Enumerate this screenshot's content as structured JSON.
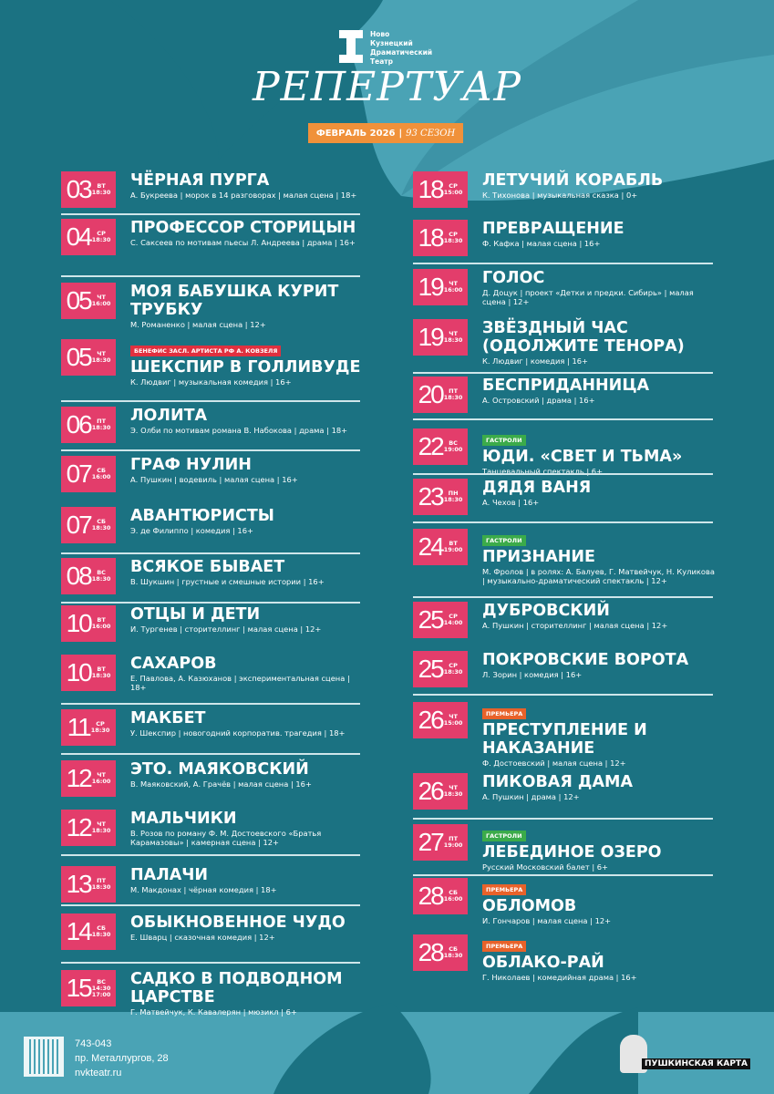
{
  "header": {
    "logo_lines": [
      "Ново",
      "Кузнецкий",
      "Драматический",
      "Театр"
    ],
    "title": "РЕПЕРТУАР",
    "month": "ФЕВРАЛЬ 2026",
    "season": "93 СЕЗОН"
  },
  "colors": {
    "bg_dark": "#1b7282",
    "bg_light": "#4aa3b5",
    "date": "#e33d6b",
    "month": "#f0913a",
    "tour": "#3bab4a",
    "premiere": "#e8622a",
    "benefit": "#e0303f"
  },
  "left": [
    {
      "day": "03",
      "wd": "ВТ",
      "time": "18:30",
      "title": "Чёрная пурга",
      "desc": "А. Букреева | морок в 14 разговорах | малая сцена | 18+"
    },
    {
      "day": "04",
      "wd": "СР",
      "time": "18:30",
      "title": "Профессор сторицын",
      "desc": "С. Саксеев по мотивам пьесы Л. Андреева | драма | 16+"
    },
    {
      "day": "05",
      "wd": "ЧТ",
      "time": "16:00",
      "title": "Моя бабушка курит трубку",
      "desc": "М. Романенко | малая сцена | 12+"
    },
    {
      "day": "05",
      "wd": "ЧТ",
      "time": "18:30",
      "badge": "БЕНЕФИС ЗАСЛ. АРТИСТА РФ А. КОВЗЕЛЯ",
      "badge_type": "benefit",
      "title": "Шекспир в Голливуде",
      "desc": "К. Людвиг | музыкальная комедия | 16+"
    },
    {
      "day": "06",
      "wd": "ПТ",
      "time": "18:30",
      "title": "Лолита",
      "desc": "Э. Олби по мотивам романа В. Набокова | драма | 18+"
    },
    {
      "day": "07",
      "wd": "СБ",
      "time": "16:00",
      "title": "Граф Нулин",
      "desc": "А. Пушкин | водевиль | малая сцена | 16+"
    },
    {
      "day": "07",
      "wd": "СБ",
      "time": "18:30",
      "title": "Авантюристы",
      "desc": "Э. де Филиппо | комедия | 16+"
    },
    {
      "day": "08",
      "wd": "ВС",
      "time": "18:30",
      "title": "Всякое бывает",
      "desc": "В. Шукшин | грустные и смешные истории | 16+"
    },
    {
      "day": "10",
      "wd": "ВТ",
      "time": "16:00",
      "title": "Отцы и дети",
      "desc": "И. Тургенев | сторителлинг | малая сцена | 12+"
    },
    {
      "day": "10",
      "wd": "ВТ",
      "time": "18:30",
      "title": "Сахаров",
      "desc": "Е. Павлова, А. Казюханов | экспериментальная сцена | 18+"
    },
    {
      "day": "11",
      "wd": "СР",
      "time": "18:30",
      "title": "Макбет",
      "desc": "У. Шекспир | новогодний корпоратив. трагедия | 18+"
    },
    {
      "day": "12",
      "wd": "ЧТ",
      "time": "16:00",
      "title": "Это. Маяковский",
      "desc": "В. Маяковский, А. Грачёв | малая сцена | 16+"
    },
    {
      "day": "12",
      "wd": "ЧТ",
      "time": "18:30",
      "title": "Мальчики",
      "desc": "В. Розов по роману Ф. М. Достоевского «Братья Карамазовы» | камерная сцена | 12+"
    },
    {
      "day": "13",
      "wd": "ПТ",
      "time": "18:30",
      "title": "Палачи",
      "desc": "М. Макдонах | чёрная комедия | 18+"
    },
    {
      "day": "14",
      "wd": "СБ",
      "time": "18:30",
      "title": "Обыкновенное чудо",
      "desc": "Е. Шварц | сказочная комедия | 12+"
    },
    {
      "day": "15",
      "wd": "ВС",
      "time": "14:30 17:00",
      "title": "Садко в подводном царстве",
      "desc": "Г. Матвейчук, К. Кавалерян | мюзикл | 6+"
    }
  ],
  "right": [
    {
      "day": "18",
      "wd": "СР",
      "time": "15:00",
      "title": "Летучий корабль",
      "desc": "К. Тихонова | музыкальная сказка | 0+"
    },
    {
      "day": "18",
      "wd": "СР",
      "time": "18:30",
      "title": "Превращение",
      "desc": "Ф. Кафка | малая сцена | 16+"
    },
    {
      "day": "19",
      "wd": "ЧТ",
      "time": "16:00",
      "title": "Голос",
      "desc": "Д. Доцук | проект «Детки и предки. Сибирь» | малая сцена | 12+"
    },
    {
      "day": "19",
      "wd": "ЧТ",
      "time": "18:30",
      "title": "Звёздный час (одолжите тенора)",
      "desc": "К. Людвиг | комедия | 16+"
    },
    {
      "day": "20",
      "wd": "ПТ",
      "time": "18:30",
      "title": "Бесприданница",
      "desc": "А. Островский | драма | 16+"
    },
    {
      "day": "22",
      "wd": "ВС",
      "time": "19:00",
      "badge": "ГАСТРОЛИ",
      "badge_type": "tour",
      "title": "Юди. «Свет и тьма»",
      "desc": "Танцевальный спектакль | 6+"
    },
    {
      "day": "23",
      "wd": "ПН",
      "time": "18:30",
      "title": "Дядя Ваня",
      "desc": "А. Чехов | 16+"
    },
    {
      "day": "24",
      "wd": "ВТ",
      "time": "19:00",
      "badge": "ГАСТРОЛИ",
      "badge_type": "tour",
      "title": "Признание",
      "desc": "М. Фролов | в ролях: А. Балуев, Г. Матвейчук, Н. Куликова | музыкально-драматический спектакль | 12+"
    },
    {
      "day": "25",
      "wd": "СР",
      "time": "14:00",
      "title": "Дубровский",
      "desc": "А. Пушкин | сторителлинг | малая сцена | 12+"
    },
    {
      "day": "25",
      "wd": "СР",
      "time": "18:30",
      "title": "Покровские ворота",
      "desc": "Л. Зорин | комедия | 16+"
    },
    {
      "day": "26",
      "wd": "ЧТ",
      "time": "15:00",
      "badge": "ПРЕМЬЕРА",
      "badge_type": "premiere",
      "title": "Преступление и наказание",
      "desc": "Ф. Достоевский | малая сцена | 12+"
    },
    {
      "day": "26",
      "wd": "ЧТ",
      "time": "18:30",
      "title": "Пиковая дама",
      "desc": "А. Пушкин | драма | 12+"
    },
    {
      "day": "27",
      "wd": "ПТ",
      "time": "19:00",
      "badge": "ГАСТРОЛИ",
      "badge_type": "tour",
      "title": "Лебединое озеро",
      "desc": "Русский Московский балет | 6+"
    },
    {
      "day": "28",
      "wd": "СБ",
      "time": "16:00",
      "badge": "ПРЕМЬЕРА",
      "badge_type": "premiere",
      "title": "Обломов",
      "desc": "И. Гончаров | малая сцена | 12+"
    },
    {
      "day": "28",
      "wd": "СБ",
      "time": "18:30",
      "badge": "ПРЕМЬЕРА",
      "badge_type": "premiere",
      "title": "Облако-рай",
      "desc": "Г. Николаев | комедийная драма | 16+"
    }
  ],
  "footer": {
    "phone": "743-043",
    "address": "пр. Металлургов, 28",
    "site": "nvkteatr.ru",
    "pushkin_card": "ПУШКИНСКАЯ КАРТА"
  }
}
